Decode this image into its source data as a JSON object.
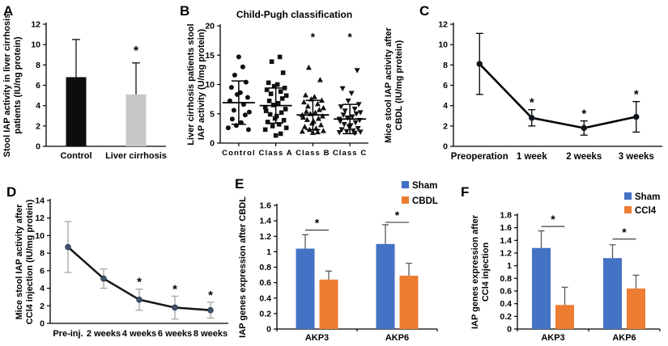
{
  "figure": {
    "background": "#ffffff",
    "star_symbol": "*"
  },
  "panels": {
    "A": {
      "letter": "A"
    },
    "B": {
      "letter": "B"
    },
    "C": {
      "letter": "C"
    },
    "D": {
      "letter": "D"
    },
    "E": {
      "letter": "E"
    },
    "F": {
      "letter": "F"
    }
  },
  "colors": {
    "sham_blue": "#4472C4",
    "treatment_orange": "#ED7D31",
    "control_black": "#0d0d0d",
    "cirrhosis_gray": "#c8c8c8",
    "error_gray": "#595959",
    "line_d_error": "#a6a6a6",
    "marker_navy": "#44546a"
  },
  "chart_data": [
    {
      "panel": "A",
      "type": "bar",
      "ylabel": "Stool IAP activity in liver cirrhosis patients (IU/ng protein)",
      "categories": [
        "Control",
        "Liver cirrhosis"
      ],
      "values": [
        6.8,
        5.1
      ],
      "errors": [
        3.7,
        3.1
      ],
      "bar_colors": [
        "#0d0d0d",
        "#c8c8c8"
      ],
      "significance": [
        "",
        "*"
      ],
      "ylim": [
        0,
        12
      ],
      "ytick_step": 2
    },
    {
      "panel": "B",
      "type": "scatter",
      "title": "Child-Pugh classification",
      "ylabel": "Liver cirrhosis patients stool IAP activity (U/mg protein)",
      "categories": [
        "Control",
        "Class A",
        "Class B",
        "Class C"
      ],
      "markers": [
        "circle",
        "square",
        "triangle-up",
        "triangle-down"
      ],
      "groups": [
        {
          "name": "Control",
          "mean": 6.9,
          "sd": 3.7,
          "points": [
            14.7,
            13.0,
            11.6,
            10.4,
            9.5,
            8.6,
            8.3,
            7.8,
            7.2,
            6.6,
            5.6,
            5.3,
            4.8,
            4.1,
            3.5,
            3.0,
            2.6,
            2.3
          ]
        },
        {
          "name": "Class A",
          "mean": 6.4,
          "sd": 3.0,
          "points": [
            14.7,
            13.9,
            12.0,
            10.3,
            10.0,
            9.7,
            9.4,
            9.1,
            8.8,
            8.4,
            8.1,
            7.6,
            7.2,
            6.8,
            6.5,
            6.1,
            5.8,
            5.5,
            5.2,
            4.9,
            4.6,
            4.2,
            3.9,
            3.6,
            3.2,
            2.9,
            2.6,
            2.3,
            1.6,
            1.3
          ]
        },
        {
          "name": "Class B",
          "mean": 4.8,
          "sd": 2.5,
          "points": [
            12.9,
            10.8,
            8.2,
            7.9,
            7.5,
            7.3,
            7.0,
            6.7,
            6.3,
            6.0,
            5.7,
            5.4,
            5.2,
            5.0,
            4.8,
            4.6,
            4.4,
            4.2,
            4.0,
            3.7,
            3.4,
            3.1,
            2.8,
            2.5,
            2.3,
            2.1,
            2.0,
            1.9,
            1.8
          ]
        },
        {
          "name": "Class C",
          "mean": 4.1,
          "sd": 2.5,
          "points": [
            12.4,
            9.3,
            8.5,
            7.2,
            6.6,
            6.2,
            5.8,
            5.5,
            5.2,
            5.0,
            4.8,
            4.5,
            4.3,
            4.1,
            3.9,
            3.7,
            3.5,
            3.2,
            3.0,
            2.8,
            2.5,
            2.3,
            2.1,
            2.0,
            1.9,
            1.8,
            1.7
          ]
        }
      ],
      "significance": [
        "",
        "",
        "*",
        "*"
      ],
      "sig_y": 18,
      "ylim": [
        0,
        20
      ],
      "ytick_step": 5
    },
    {
      "panel": "C",
      "type": "line",
      "ylabel": "Mice stool IAP activity after CBDL (IU/mg protein)",
      "categories": [
        "Preoperation",
        "1 week",
        "2 weeks",
        "3 weeks"
      ],
      "values": [
        8.1,
        2.8,
        1.8,
        2.9
      ],
      "errors": [
        3.0,
        0.8,
        0.7,
        1.5
      ],
      "significance": [
        "",
        "*",
        "*",
        "*"
      ],
      "ylim": [
        0,
        12
      ],
      "ytick_step": 2,
      "line_color": "#000000",
      "marker_color": "#111111",
      "error_color": "#000000"
    },
    {
      "panel": "D",
      "type": "line",
      "ylabel": "Mice stool IAP activity after CCl4 injection (IU/mg protein)",
      "categories": [
        "Pre-inj.",
        "2 weeks",
        "4 weeks",
        "6 weeks",
        "8 weeks"
      ],
      "values": [
        8.7,
        5.1,
        2.7,
        1.8,
        1.5
      ],
      "errors": [
        2.9,
        1.1,
        1.2,
        1.3,
        0.9
      ],
      "significance": [
        "",
        "",
        "*",
        "*",
        "*"
      ],
      "ylim": [
        0,
        14
      ],
      "ytick_step": 2,
      "line_color": "#1a1a1a",
      "marker_color": "#44546a",
      "error_color": "#a6a6a6"
    },
    {
      "panel": "E",
      "type": "grouped-bar",
      "ylabel": "IAP genes expression after CBDL",
      "categories": [
        "AKP3",
        "AKP6"
      ],
      "series": [
        {
          "name": "Sham",
          "color": "#4472C4",
          "values": [
            1.04,
            1.1
          ],
          "errors": [
            0.18,
            0.25
          ]
        },
        {
          "name": "CBDL",
          "color": "#ED7D31",
          "values": [
            0.64,
            0.69
          ],
          "errors": [
            0.11,
            0.16
          ]
        }
      ],
      "significance": [
        "*",
        "*"
      ],
      "sig_y": [
        1.28,
        1.38
      ],
      "ylim": [
        0,
        1.6
      ],
      "ytick_step": 0.2
    },
    {
      "panel": "F",
      "type": "grouped-bar",
      "ylabel": "IAP genes expression after CCl4 injection",
      "categories": [
        "AKP3",
        "AKP6"
      ],
      "series": [
        {
          "name": "Sham",
          "color": "#4472C4",
          "values": [
            1.28,
            1.12
          ],
          "errors": [
            0.27,
            0.21
          ]
        },
        {
          "name": "CCl4",
          "color": "#ED7D31",
          "values": [
            0.38,
            0.64
          ],
          "errors": [
            0.28,
            0.21
          ]
        }
      ],
      "significance": [
        "*",
        "*"
      ],
      "sig_y": [
        1.62,
        1.42
      ],
      "ylim": [
        0,
        1.8
      ],
      "ytick_step": 0.2
    }
  ]
}
